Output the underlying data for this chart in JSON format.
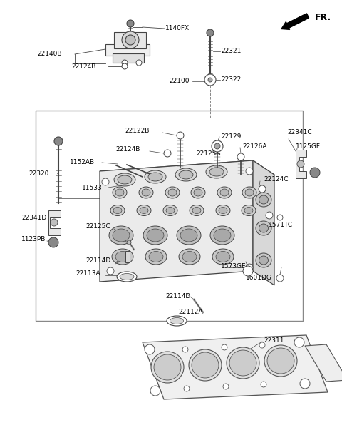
{
  "bg_color": "#ffffff",
  "line_color": "#444444",
  "text_color": "#000000",
  "figsize": [
    4.8,
    5.96
  ],
  "dpi": 100,
  "fr_label": "FR.",
  "parts_labels": [
    "1140FX",
    "22140B",
    "22124B",
    "22321",
    "22100",
    "22322",
    "22320",
    "22122B",
    "22129",
    "22125A",
    "22126A",
    "22124B",
    "1152AB",
    "11533",
    "22124C",
    "22341C",
    "1125GF",
    "22341D",
    "1123PB",
    "22125C",
    "1571TC",
    "22114D",
    "22113A",
    "1573GE",
    "1601DG",
    "22114D",
    "22112A",
    "22311"
  ]
}
